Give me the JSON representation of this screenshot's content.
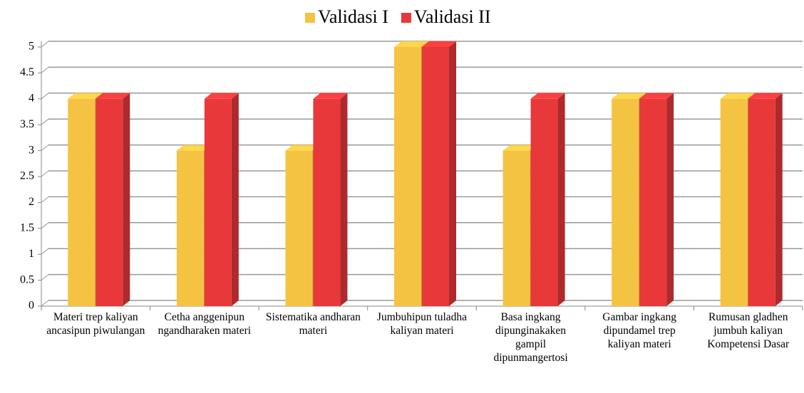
{
  "chart_data": {
    "type": "bar3d",
    "categories": [
      "Materi trep kaliyan ancasipun piwulangan",
      "Cetha anggenipun ngandharaken materi",
      "Sistematika andharan materi",
      "Jumbuhipun tuladha kaliyan materi",
      "Basa ingkang dipunginakaken gampil dipunmangertosi",
      "Gambar ingkang dipundamel trep kaliyan materi",
      "Rumusan gladhen jumbuh kaliyan Kompetensi Dasar"
    ],
    "series": [
      {
        "name": "Validasi I",
        "color": "#f5c342",
        "values": [
          4,
          3,
          3,
          5,
          3,
          4,
          4
        ]
      },
      {
        "name": "Validasi II",
        "color": "#e8383a",
        "values": [
          4,
          4,
          4,
          5,
          4,
          4,
          4
        ]
      }
    ],
    "ylim": [
      0,
      5
    ],
    "yticks": [
      0,
      0.5,
      1,
      1.5,
      2,
      2.5,
      3,
      3.5,
      4,
      4.5,
      5
    ],
    "grid": true,
    "legend": "top"
  }
}
